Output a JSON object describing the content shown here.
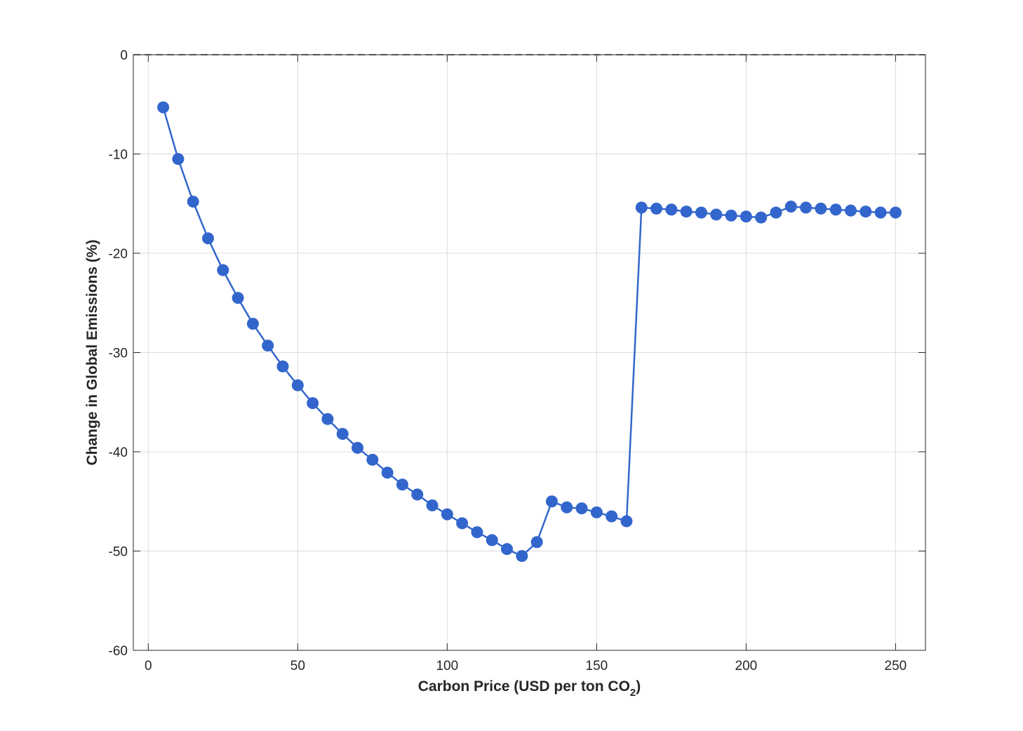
{
  "chart_data": {
    "type": "line",
    "title": "",
    "xlabel": "Carbon Price (USD per ton CO",
    "xlabel_subscript": "2",
    "xlabel_suffix": ")",
    "ylabel": "Change in Global Emissions (%)",
    "xlim": [
      -5,
      260
    ],
    "ylim": [
      -60,
      0
    ],
    "xticks": [
      0,
      50,
      100,
      150,
      200,
      250
    ],
    "yticks": [
      0,
      -10,
      -20,
      -30,
      -40,
      -50,
      -60
    ],
    "grid": true,
    "reference_line": {
      "y": 0,
      "style": "dashed",
      "color": "#000000"
    },
    "series": [
      {
        "color": "#3366CC",
        "marker": "circle",
        "x": [
          5,
          10,
          15,
          20,
          25,
          30,
          35,
          40,
          45,
          50,
          55,
          60,
          65,
          70,
          75,
          80,
          85,
          90,
          95,
          100,
          105,
          110,
          115,
          120,
          125,
          130,
          135,
          140,
          145,
          150,
          155,
          160,
          165,
          170,
          175,
          180,
          185,
          190,
          195,
          200,
          205,
          210,
          215,
          220,
          225,
          230,
          235,
          240,
          245,
          250
        ],
        "y": [
          -5.3,
          -10.5,
          -14.8,
          -18.5,
          -21.7,
          -24.5,
          -27.1,
          -29.3,
          -31.4,
          -33.3,
          -35.1,
          -36.7,
          -38.2,
          -39.6,
          -40.8,
          -42.1,
          -43.3,
          -44.3,
          -45.4,
          -46.3,
          -47.2,
          -48.1,
          -48.9,
          -49.8,
          -50.5,
          -49.1,
          -45.0,
          -45.6,
          -45.7,
          -46.1,
          -46.5,
          -47.0,
          -15.4,
          -15.5,
          -15.6,
          -15.8,
          -15.9,
          -16.1,
          -16.2,
          -16.3,
          -16.4,
          -15.9,
          -15.3,
          -15.4,
          -15.5,
          -15.6,
          -15.7,
          -15.8,
          -15.9,
          -15.9
        ]
      }
    ]
  }
}
